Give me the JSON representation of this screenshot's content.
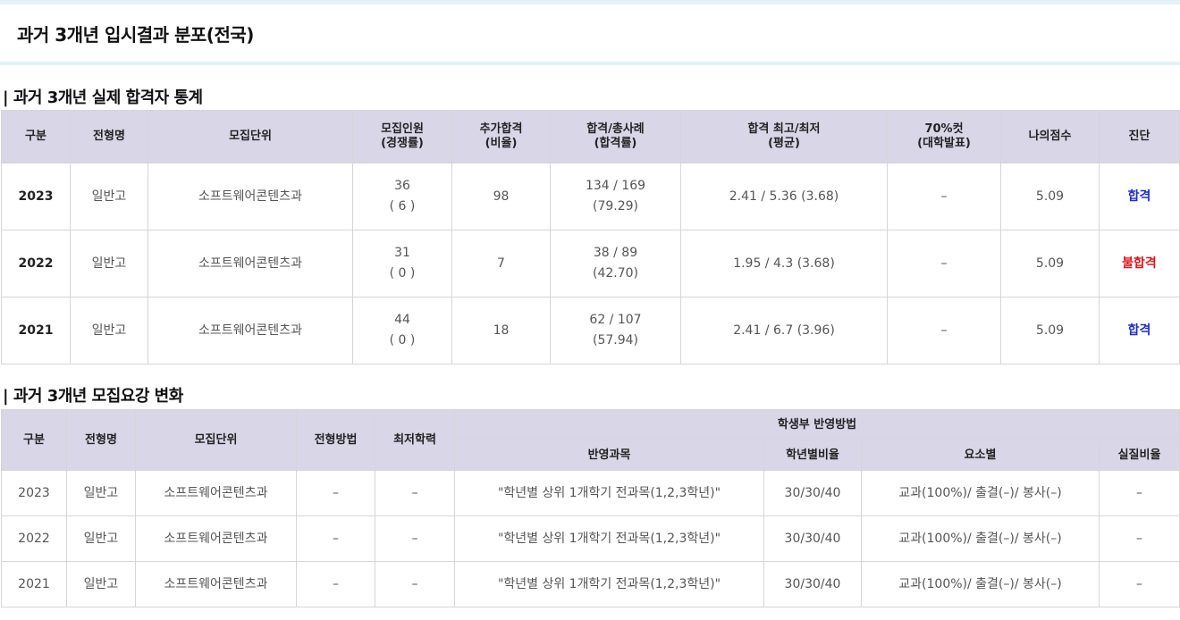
{
  "page_title": "과거 3개년 입시결과 분포(전국)",
  "stats": {
    "section_title": "| 과거 3개년 실제 합격자 통계",
    "headers": {
      "year": "구분",
      "type": "전형명",
      "unit": "모집단위",
      "quota_a": "모집인원",
      "quota_b": "(경쟁률)",
      "extra_a": "추가합격",
      "extra_b": "(비율)",
      "ratio_a": "합격/총사례",
      "ratio_b": "(합격률)",
      "grade_a": "합격 최고/최저",
      "grade_b": "(평균)",
      "cut_a": "70%컷",
      "cut_b": "(대학발표)",
      "myscore": "나의점수",
      "diag": "진단"
    },
    "rows": [
      {
        "year": "2023",
        "type": "일반고",
        "unit": "소프트웨어콘텐츠과",
        "quota": "36",
        "comp": "( 6 )",
        "extra": "98",
        "ratio": "134 / 169",
        "rate": "(79.29)",
        "grade": "2.41 / 5.36 (3.68)",
        "cut": "–",
        "myscore": "5.09",
        "diag": "합격",
        "status": "pass"
      },
      {
        "year": "2022",
        "type": "일반고",
        "unit": "소프트웨어콘텐츠과",
        "quota": "31",
        "comp": "( 0 )",
        "extra": "7",
        "ratio": "38 / 89",
        "rate": "(42.70)",
        "grade": "1.95 / 4.3 (3.68)",
        "cut": "–",
        "myscore": "5.09",
        "diag": "불합격",
        "status": "fail"
      },
      {
        "year": "2021",
        "type": "일반고",
        "unit": "소프트웨어콘텐츠과",
        "quota": "44",
        "comp": "( 0 )",
        "extra": "18",
        "ratio": "62 / 107",
        "rate": "(57.94)",
        "grade": "2.41 / 6.7 (3.96)",
        "cut": "–",
        "myscore": "5.09",
        "diag": "합격",
        "status": "pass"
      }
    ]
  },
  "guide": {
    "section_title": "| 과거 3개년 모집요강 변화",
    "headers": {
      "year": "구분",
      "type": "전형명",
      "unit": "모집단위",
      "method": "전형방법",
      "minimum": "최저학력",
      "record": "학생부 반영방법",
      "subjects": "반영과목",
      "year_ratio": "학년별비율",
      "elements": "요소별",
      "real_ratio": "실질비율"
    },
    "rows": [
      {
        "year": "2023",
        "type": "일반고",
        "unit": "소프트웨어콘텐츠과",
        "method": "–",
        "minimum": "–",
        "subjects": "\"학년별 상위 1개학기 전과목(1,2,3학년)\"",
        "year_ratio": "30/30/40",
        "elements": "교과(100%)/ 출결(–)/ 봉사(–)",
        "real_ratio": "–"
      },
      {
        "year": "2022",
        "type": "일반고",
        "unit": "소프트웨어콘텐츠과",
        "method": "–",
        "minimum": "–",
        "subjects": "\"학년별 상위 1개학기 전과목(1,2,3학년)\"",
        "year_ratio": "30/30/40",
        "elements": "교과(100%)/ 출결(–)/ 봉사(–)",
        "real_ratio": "–"
      },
      {
        "year": "2021",
        "type": "일반고",
        "unit": "소프트웨어콘텐츠과",
        "method": "–",
        "minimum": "–",
        "subjects": "\"학년별 상위 1개학기 전과목(1,2,3학년)\"",
        "year_ratio": "30/30/40",
        "elements": "교과(100%)/ 출결(–)/ 봉사(–)",
        "real_ratio": "–"
      }
    ]
  }
}
